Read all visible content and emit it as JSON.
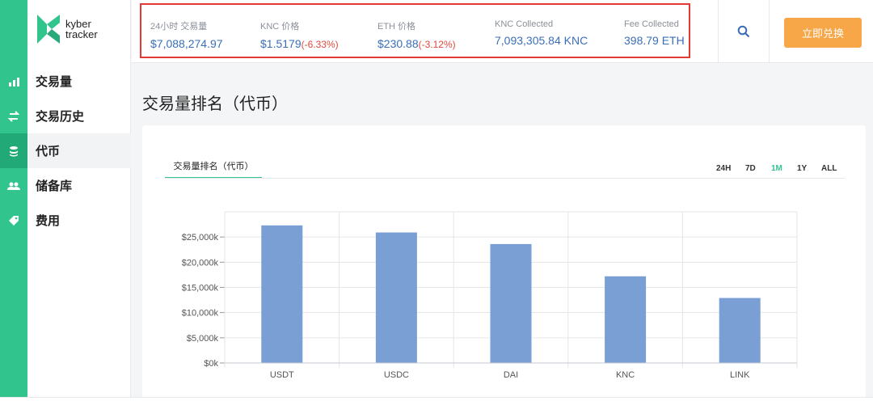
{
  "app": {
    "logo_line1": "kyber",
    "logo_line2": "tracker"
  },
  "sidebar": {
    "items": [
      {
        "label": "交易量",
        "icon": "bar-chart-icon"
      },
      {
        "label": "交易历史",
        "icon": "swap-arrows-icon"
      },
      {
        "label": "代币",
        "icon": "coins-stack-icon",
        "active": true
      },
      {
        "label": "储备库",
        "icon": "people-icon"
      },
      {
        "label": "费用",
        "icon": "tag-icon"
      }
    ]
  },
  "stats": [
    {
      "label": "24小时 交易量",
      "value": "$7,088,274.97",
      "change": ""
    },
    {
      "label": "KNC 价格",
      "value": "$1.5179",
      "change": "(-6.33%)"
    },
    {
      "label": "ETH 价格",
      "value": "$230.88",
      "change": "(-3.12%)"
    },
    {
      "label": "KNC Collected",
      "value": "7,093,305.84 KNC",
      "change": ""
    },
    {
      "label": "Fee Collected",
      "value": "398.79 ETH",
      "change": ""
    }
  ],
  "header": {
    "swap_button": "立即兑换"
  },
  "page": {
    "title": "交易量排名（代币）",
    "tab": "交易量排名（代币）",
    "ranges": [
      "24H",
      "7D",
      "1M",
      "1Y",
      "ALL"
    ],
    "active_range": "1M"
  },
  "colors": {
    "accent": "#31c48d",
    "bar": "#7a9fd4",
    "highlight_box": "#e53935",
    "swap_button": "#f8a748"
  },
  "chart_data": {
    "type": "bar",
    "categories": [
      "USDT",
      "USDC",
      "DAI",
      "KNC",
      "LINK"
    ],
    "values": [
      27300,
      25900,
      23600,
      17200,
      12900
    ],
    "ylim": [
      0,
      30000
    ],
    "yticks": [
      0,
      5000,
      10000,
      15000,
      20000,
      25000
    ],
    "ytick_labels": [
      "$0k",
      "$5,000k",
      "$10,000k",
      "$15,000k",
      "$20,000k",
      "$25,000k"
    ],
    "grid": true
  }
}
